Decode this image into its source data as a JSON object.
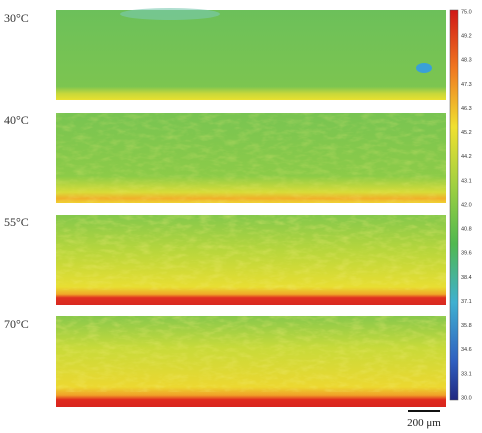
{
  "panels": [
    {
      "label": "30°C"
    },
    {
      "label": "40°C"
    },
    {
      "label": "55°C"
    },
    {
      "label": "70°C"
    }
  ],
  "colorbar": {
    "ticks": [
      "75.0",
      "49.2",
      "48.3",
      "47.3",
      "46.3",
      "45.2",
      "44.2",
      "43.1",
      "42.0",
      "40.8",
      "39.6",
      "38.4",
      "37.1",
      "35.8",
      "34.6",
      "33.1",
      "30.0"
    ]
  },
  "scale_bar": {
    "label": "200 μm"
  }
}
